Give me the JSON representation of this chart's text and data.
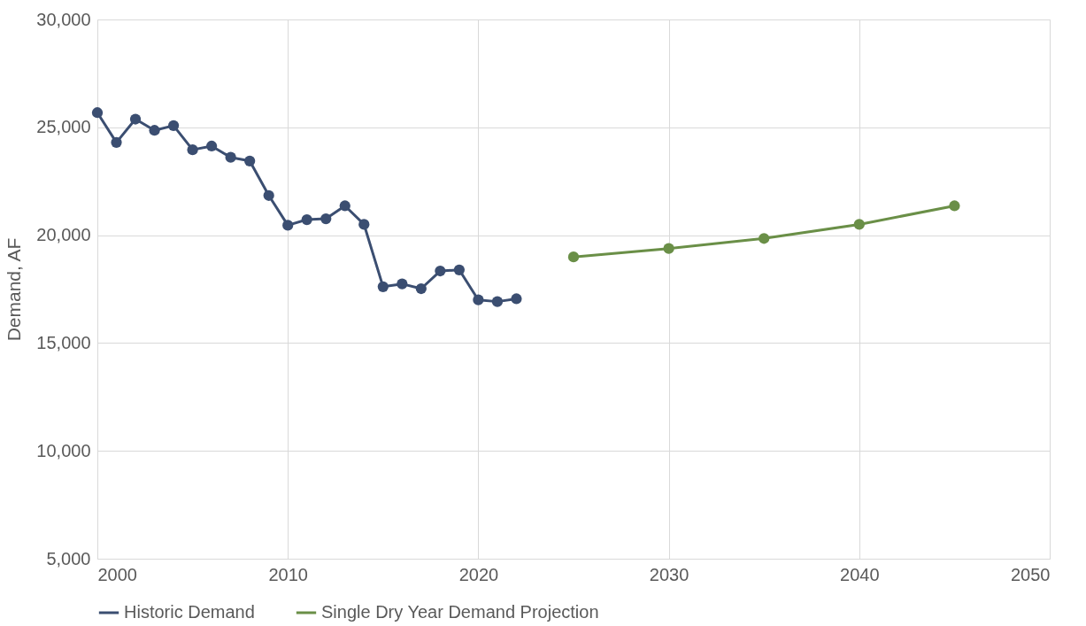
{
  "chart_data": {
    "type": "line",
    "ylabel": "Demand, AF",
    "xlim": [
      2000,
      2050
    ],
    "xticks": [
      2000,
      2010,
      2020,
      2030,
      2040,
      2050
    ],
    "ylim": [
      5000,
      30000
    ],
    "yticks": [
      {
        "value": 5000,
        "label": "5,000"
      },
      {
        "value": 10000,
        "label": "10,000"
      },
      {
        "value": 15000,
        "label": "15,000"
      },
      {
        "value": 20000,
        "label": "20,000"
      },
      {
        "value": 25000,
        "label": "25,000"
      },
      {
        "value": 30000,
        "label": "30,000"
      }
    ],
    "grid": true,
    "legend": "bottom",
    "marker": "circle",
    "line_style": "solid",
    "series": [
      {
        "name": "Historic Demand",
        "color": "#3b4e71",
        "x": [
          2000,
          2001,
          2002,
          2003,
          2004,
          2005,
          2006,
          2007,
          2008,
          2009,
          2010,
          2011,
          2012,
          2013,
          2014,
          2015,
          2016,
          2017,
          2018,
          2019,
          2020,
          2021,
          2022
        ],
        "values": [
          25680,
          24300,
          25380,
          24860,
          25080,
          23960,
          24130,
          23610,
          23440,
          21840,
          20460,
          20720,
          20760,
          21360,
          20500,
          17610,
          17740,
          17520,
          18340,
          18390,
          17000,
          16920,
          17050
        ]
      },
      {
        "name": "Single Dry Year Demand Projection",
        "color": "#6a8f47",
        "x": [
          2025,
          2030,
          2035,
          2040,
          2045
        ],
        "values": [
          18990,
          19380,
          19850,
          20500,
          21360
        ]
      }
    ]
  }
}
